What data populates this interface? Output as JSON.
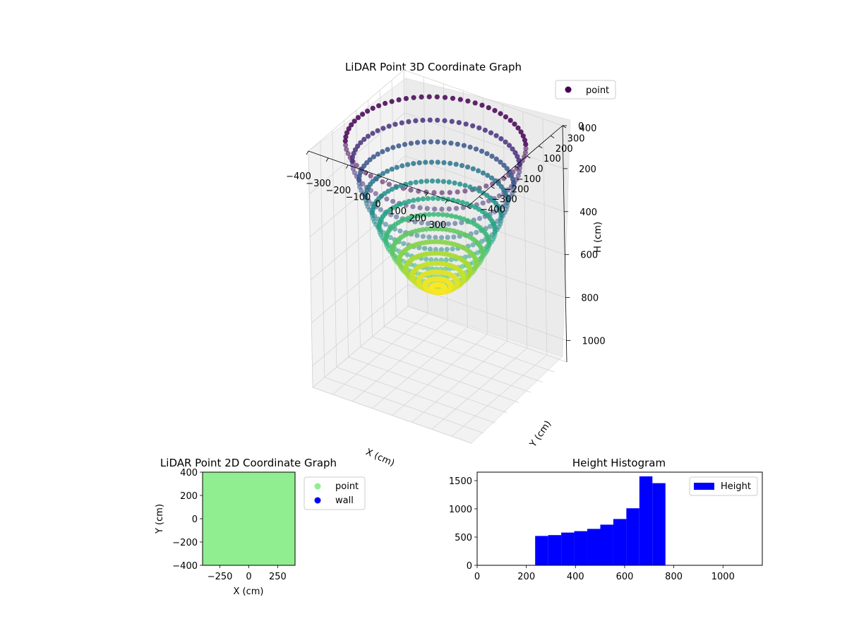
{
  "chart_data": [
    {
      "type": "scatter",
      "title": "LiDAR Point 3D Coordinate Graph",
      "xlabel": "X (cm)",
      "ylabel": "Y (cm)",
      "zlabel": "H (cm)",
      "xlim": [
        -400,
        400
      ],
      "ylim": [
        -400,
        400
      ],
      "zlim": [
        0,
        1100
      ],
      "z_inverted": true,
      "x_ticks": [
        "−400",
        "−300",
        "−200",
        "−100",
        "0",
        "100",
        "200",
        "300"
      ],
      "y_ticks": [
        "−400",
        "−300",
        "−200",
        "−100",
        "0",
        "100",
        "200",
        "300",
        "400"
      ],
      "z_ticks": [
        "0",
        "200",
        "400",
        "600",
        "800",
        "1000"
      ],
      "grid": true,
      "legend": {
        "placement": "top-right",
        "entries": [
          "point"
        ]
      },
      "colormap": "viridis",
      "colors": {
        "point_marker": "#440154"
      },
      "surface": {
        "shape": "bowl",
        "rim_radius": 390,
        "rim_height": 30,
        "bottom_height": 700
      }
    },
    {
      "type": "scatter",
      "title": "LiDAR Point 2D Coordinate Graph",
      "xlabel": "X (cm)",
      "ylabel": "Y (cm)",
      "xlim": [
        -400,
        400
      ],
      "ylim": [
        -400,
        400
      ],
      "x_ticks": [
        "−250",
        "0",
        "250"
      ],
      "y_ticks": [
        "400",
        "200",
        "0",
        "−200",
        "−400"
      ],
      "legend": {
        "placement": "outside-right",
        "entries": [
          "point",
          "wall"
        ]
      },
      "colors": {
        "point": "#90ee90",
        "wall": "#0000ff"
      }
    },
    {
      "type": "bar",
      "title": "Height Histogram",
      "xlim": [
        0,
        1160
      ],
      "ylim": [
        0,
        1650
      ],
      "x_ticks": [
        "0",
        "200",
        "400",
        "600",
        "800",
        "1000"
      ],
      "y_ticks": [
        "0",
        "500",
        "1000",
        "1500"
      ],
      "bins": [
        {
          "x0": 236,
          "x1": 289,
          "value": 520
        },
        {
          "x0": 289,
          "x1": 342,
          "value": 535
        },
        {
          "x0": 342,
          "x1": 395,
          "value": 580
        },
        {
          "x0": 395,
          "x1": 448,
          "value": 605
        },
        {
          "x0": 448,
          "x1": 501,
          "value": 645
        },
        {
          "x0": 501,
          "x1": 554,
          "value": 720
        },
        {
          "x0": 554,
          "x1": 607,
          "value": 820
        },
        {
          "x0": 607,
          "x1": 660,
          "value": 1010
        },
        {
          "x0": 660,
          "x1": 713,
          "value": 1575
        },
        {
          "x0": 713,
          "x1": 766,
          "value": 1455
        }
      ],
      "legend": {
        "placement": "top-right",
        "entries": [
          "Height"
        ]
      },
      "colors": {
        "bar": "#0000ff"
      }
    }
  ]
}
